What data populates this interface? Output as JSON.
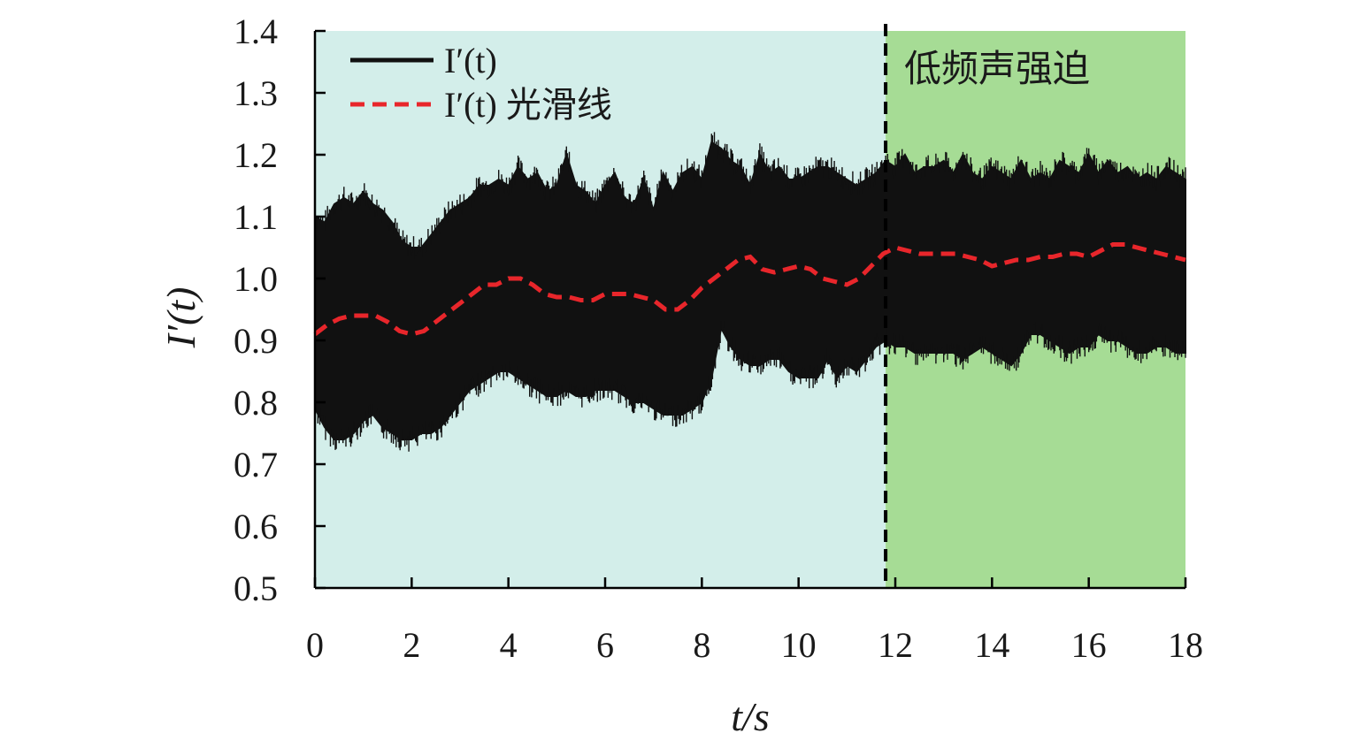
{
  "chart_data": {
    "type": "line",
    "xlabel": "t/s",
    "ylabel": "I′(t)",
    "xlim": [
      0,
      18
    ],
    "ylim": [
      0.5,
      1.4
    ],
    "x_ticks": [
      "0",
      "2",
      "4",
      "6",
      "8",
      "10",
      "12",
      "14",
      "16",
      "18"
    ],
    "y_ticks": [
      "1.4",
      "1.3",
      "1.2",
      "1.1",
      "1.0",
      "0.9",
      "0.8",
      "0.7",
      "0.6",
      "0.5"
    ],
    "grid": false,
    "legend_placement": "top-left",
    "regions": [
      {
        "x_start": 0,
        "x_end": 11.8,
        "color": "#d3eeea",
        "label": ""
      },
      {
        "x_start": 11.8,
        "x_end": 18,
        "color": "#a6dc95",
        "label": "低频声强迫"
      }
    ],
    "boundary_x": 11.8,
    "series": [
      {
        "name": "I′(t)",
        "style": "solid",
        "color": "#111111",
        "band_x": [
          0,
          0.2,
          0.4,
          0.6,
          0.8,
          1.0,
          1.2,
          1.4,
          1.6,
          1.8,
          2.0,
          2.2,
          2.4,
          2.6,
          2.8,
          3.0,
          3.2,
          3.4,
          3.6,
          3.8,
          4.0,
          4.2,
          4.4,
          4.6,
          4.8,
          5.0,
          5.2,
          5.4,
          5.6,
          5.8,
          6.0,
          6.2,
          6.4,
          6.6,
          6.8,
          7.0,
          7.2,
          7.4,
          7.6,
          7.8,
          8.0,
          8.2,
          8.4,
          8.6,
          8.8,
          9.0,
          9.2,
          9.4,
          9.6,
          9.8,
          10.0,
          10.2,
          10.4,
          10.6,
          10.8,
          11.0,
          11.2,
          11.4,
          11.6,
          11.8,
          12.0,
          12.2,
          12.4,
          12.6,
          12.8,
          13.0,
          13.2,
          13.4,
          13.6,
          13.8,
          14.0,
          14.2,
          14.4,
          14.6,
          14.8,
          15.0,
          15.2,
          15.4,
          15.6,
          15.8,
          16.0,
          16.2,
          16.4,
          16.6,
          16.8,
          17.0,
          17.2,
          17.4,
          17.6,
          17.8,
          18.0
        ],
        "band_upper": [
          1.1,
          1.09,
          1.12,
          1.13,
          1.12,
          1.14,
          1.12,
          1.11,
          1.09,
          1.06,
          1.05,
          1.05,
          1.07,
          1.09,
          1.11,
          1.12,
          1.13,
          1.15,
          1.15,
          1.16,
          1.15,
          1.18,
          1.16,
          1.17,
          1.14,
          1.15,
          1.2,
          1.15,
          1.14,
          1.12,
          1.15,
          1.17,
          1.13,
          1.12,
          1.16,
          1.11,
          1.17,
          1.14,
          1.17,
          1.18,
          1.16,
          1.22,
          1.21,
          1.19,
          1.18,
          1.15,
          1.2,
          1.17,
          1.18,
          1.16,
          1.16,
          1.17,
          1.18,
          1.18,
          1.17,
          1.16,
          1.15,
          1.16,
          1.17,
          1.19,
          1.18,
          1.2,
          1.17,
          1.18,
          1.18,
          1.19,
          1.17,
          1.2,
          1.17,
          1.16,
          1.18,
          1.17,
          1.16,
          1.19,
          1.16,
          1.17,
          1.16,
          1.19,
          1.18,
          1.17,
          1.2,
          1.17,
          1.19,
          1.17,
          1.18,
          1.16,
          1.17,
          1.16,
          1.18,
          1.17,
          1.16
        ],
        "band_lower": [
          0.79,
          0.76,
          0.74,
          0.74,
          0.75,
          0.77,
          0.78,
          0.76,
          0.75,
          0.74,
          0.74,
          0.75,
          0.75,
          0.76,
          0.78,
          0.8,
          0.82,
          0.83,
          0.84,
          0.85,
          0.85,
          0.84,
          0.83,
          0.82,
          0.81,
          0.81,
          0.82,
          0.81,
          0.81,
          0.82,
          0.82,
          0.82,
          0.81,
          0.8,
          0.8,
          0.79,
          0.78,
          0.78,
          0.78,
          0.79,
          0.8,
          0.84,
          0.92,
          0.89,
          0.87,
          0.86,
          0.86,
          0.87,
          0.87,
          0.85,
          0.84,
          0.84,
          0.84,
          0.87,
          0.84,
          0.86,
          0.85,
          0.87,
          0.89,
          0.9,
          0.89,
          0.89,
          0.88,
          0.88,
          0.88,
          0.88,
          0.88,
          0.87,
          0.88,
          0.89,
          0.88,
          0.87,
          0.86,
          0.88,
          0.91,
          0.91,
          0.9,
          0.89,
          0.88,
          0.89,
          0.89,
          0.91,
          0.9,
          0.9,
          0.89,
          0.88,
          0.88,
          0.89,
          0.89,
          0.88,
          0.88
        ]
      },
      {
        "name": "I′(t) 光滑线",
        "style": "dashed",
        "color": "#e8262b",
        "x": [
          0,
          0.25,
          0.5,
          0.75,
          1.0,
          1.25,
          1.5,
          1.75,
          2.0,
          2.25,
          2.5,
          2.75,
          3.0,
          3.25,
          3.5,
          3.75,
          4.0,
          4.25,
          4.5,
          4.75,
          5.0,
          5.25,
          5.5,
          5.75,
          6.0,
          6.25,
          6.5,
          6.75,
          7.0,
          7.25,
          7.5,
          7.75,
          8.0,
          8.25,
          8.5,
          8.75,
          9.0,
          9.25,
          9.5,
          9.75,
          10.0,
          10.25,
          10.5,
          10.75,
          11.0,
          11.25,
          11.5,
          11.75,
          12.0,
          12.25,
          12.5,
          12.75,
          13.0,
          13.25,
          13.5,
          13.75,
          14.0,
          14.25,
          14.5,
          14.75,
          15.0,
          15.25,
          15.5,
          15.75,
          16.0,
          16.25,
          16.5,
          16.75,
          17.0,
          17.25,
          17.5,
          17.75,
          18.0
        ],
        "values": [
          0.91,
          0.925,
          0.935,
          0.94,
          0.94,
          0.94,
          0.93,
          0.915,
          0.91,
          0.915,
          0.93,
          0.945,
          0.96,
          0.975,
          0.99,
          0.99,
          1.0,
          1.0,
          0.99,
          0.975,
          0.97,
          0.97,
          0.965,
          0.965,
          0.975,
          0.975,
          0.975,
          0.97,
          0.965,
          0.95,
          0.95,
          0.965,
          0.985,
          1.0,
          1.015,
          1.03,
          1.035,
          1.015,
          1.01,
          1.015,
          1.02,
          1.015,
          1.0,
          0.995,
          0.99,
          1.0,
          1.02,
          1.04,
          1.05,
          1.045,
          1.04,
          1.04,
          1.04,
          1.04,
          1.035,
          1.03,
          1.02,
          1.025,
          1.03,
          1.03,
          1.035,
          1.035,
          1.04,
          1.04,
          1.035,
          1.045,
          1.055,
          1.055,
          1.05,
          1.045,
          1.04,
          1.035,
          1.03
        ]
      }
    ]
  }
}
